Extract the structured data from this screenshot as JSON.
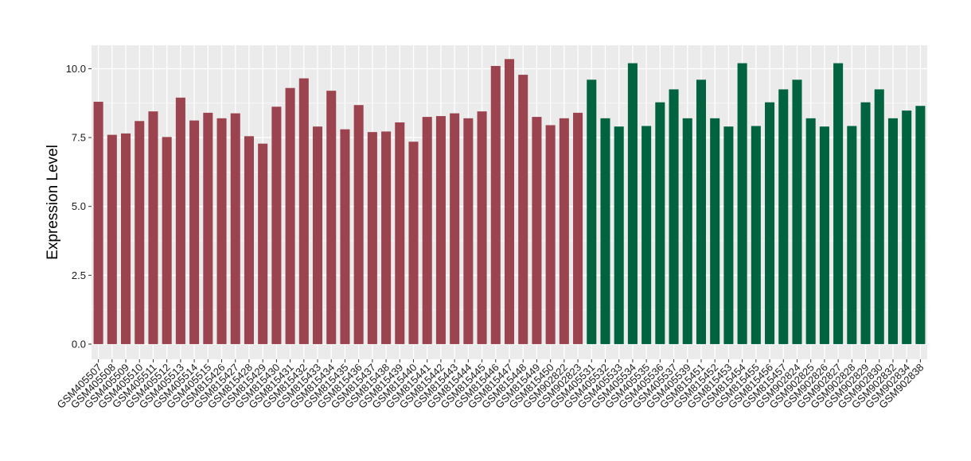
{
  "chart_data": {
    "type": "bar",
    "title": "",
    "xlabel": "",
    "ylabel": "Expression Level",
    "ylim": [
      -0.55,
      10.85
    ],
    "yticks": [
      "0.0",
      "2.5",
      "5.0",
      "7.5",
      "10.0"
    ],
    "grid": true,
    "legend": "none",
    "categories": [
      "GSM405507",
      "GSM405508",
      "GSM405509",
      "GSM405510",
      "GSM405511",
      "GSM405512",
      "GSM405513",
      "GSM405514",
      "GSM405515",
      "GSM815426",
      "GSM815427",
      "GSM815428",
      "GSM815429",
      "GSM815430",
      "GSM815431",
      "GSM815432",
      "GSM815433",
      "GSM815434",
      "GSM815435",
      "GSM815436",
      "GSM815437",
      "GSM815438",
      "GSM815439",
      "GSM815440",
      "GSM815441",
      "GSM815442",
      "GSM815443",
      "GSM815444",
      "GSM815445",
      "GSM815446",
      "GSM815447",
      "GSM815448",
      "GSM815449",
      "GSM815450",
      "GSM902822",
      "GSM902823",
      "GSM405531",
      "GSM405532",
      "GSM405533",
      "GSM405534",
      "GSM405535",
      "GSM405536",
      "GSM405537",
      "GSM405539",
      "GSM815451",
      "GSM815452",
      "GSM815453",
      "GSM815454",
      "GSM815455",
      "GSM815456",
      "GSM815457",
      "GSM902824",
      "GSM902825",
      "GSM902826",
      "GSM902827",
      "GSM902828",
      "GSM902829",
      "GSM902830",
      "GSM902832",
      "GSM902834",
      "GSM902838"
    ],
    "values": [
      8.8,
      7.6,
      7.65,
      8.1,
      8.45,
      7.52,
      8.95,
      8.12,
      8.4,
      8.2,
      8.38,
      7.55,
      7.28,
      8.62,
      9.3,
      9.65,
      7.9,
      9.2,
      7.8,
      8.68,
      7.7,
      7.72,
      8.05,
      7.35,
      8.25,
      8.28,
      8.38,
      8.2,
      8.45,
      10.1,
      10.35,
      9.78,
      8.25,
      7.95,
      8.2,
      8.4,
      9.6,
      8.2,
      7.9,
      10.2,
      7.92,
      8.78,
      9.25,
      8.2,
      9.6,
      8.2,
      7.9,
      10.2,
      7.92,
      8.78,
      9.25,
      9.6,
      8.2,
      7.9,
      10.2,
      7.92,
      8.78,
      9.25,
      8.2,
      8.48,
      8.65
    ],
    "groups": [
      0,
      0,
      0,
      0,
      0,
      0,
      0,
      0,
      0,
      0,
      0,
      0,
      0,
      0,
      0,
      0,
      0,
      0,
      0,
      0,
      0,
      0,
      0,
      0,
      0,
      0,
      0,
      0,
      0,
      0,
      0,
      0,
      0,
      0,
      0,
      0,
      1,
      1,
      1,
      1,
      1,
      1,
      1,
      1,
      1,
      1,
      1,
      1,
      1,
      1,
      1,
      1,
      1,
      1,
      1,
      1,
      1,
      1,
      1,
      1,
      1
    ],
    "group_colors": [
      "#9b4450",
      "#006340"
    ],
    "panel_background": "#ebebeb",
    "grid_color": "#ffffff"
  }
}
